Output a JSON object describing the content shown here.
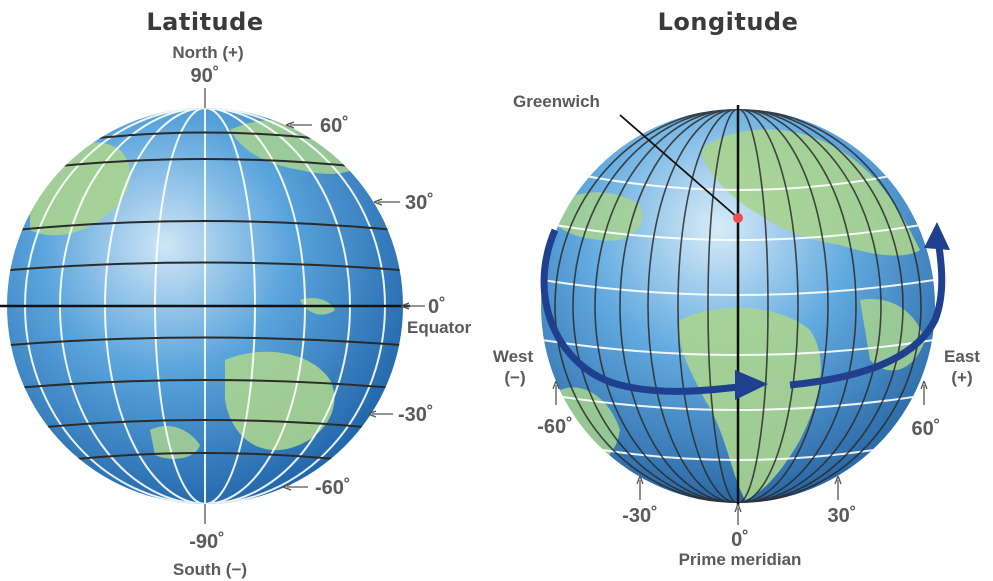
{
  "latitude_panel": {
    "title": "Latitude",
    "north_label": "North (+)",
    "south_label": "South (−)",
    "equator_label": "Equator",
    "marks": {
      "north_pole": "90˚",
      "lat_60": "60˚",
      "lat_30": "30˚",
      "lat_0": "0˚",
      "lat_neg30": "-30˚",
      "lat_neg60": "-60˚",
      "south_pole": "-90˚"
    }
  },
  "longitude_panel": {
    "title": "Longitude",
    "greenwich_label": "Greenwich",
    "west_label": "West",
    "west_sign": "(−)",
    "east_label": "East",
    "east_sign": "(+)",
    "prime_meridian_label": "Prime meridian",
    "marks": {
      "lon_neg60": "-60˚",
      "lon_neg30": "-30˚",
      "lon_0": "0˚",
      "lon_30": "30˚",
      "lon_60": "60˚"
    }
  },
  "colors": {
    "ocean": "#3f8fce",
    "land": "#9fd18a",
    "grid_line": "#ffffff",
    "key_line": "#1a1a1a",
    "arrow": "#1f3f8f",
    "greenwich_dot": "#e8504a"
  }
}
